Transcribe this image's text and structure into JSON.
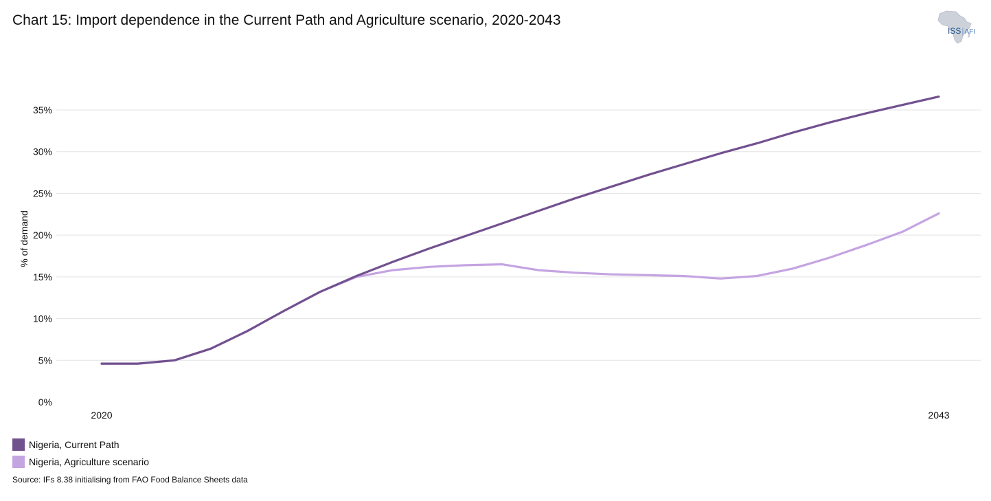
{
  "title": "Chart 15: Import dependence in the Current Path and Agriculture scenario, 2020-2043",
  "logo": {
    "primary": "ISS",
    "secondary": "AFI"
  },
  "source": "Source: IFs 8.38 initialising from FAO Food Balance Sheets data",
  "chart_data": {
    "type": "line",
    "title": "Chart 15: Import dependence in the Current Path and Agriculture scenario, 2020-2043",
    "xlabel": "",
    "ylabel": "% of demand",
    "x": [
      2020,
      2021,
      2022,
      2023,
      2024,
      2025,
      2026,
      2027,
      2028,
      2029,
      2030,
      2031,
      2032,
      2033,
      2034,
      2035,
      2036,
      2037,
      2038,
      2039,
      2040,
      2041,
      2042,
      2043
    ],
    "xticks": [
      2020,
      2043
    ],
    "xtick_labels": [
      "2020",
      "2043"
    ],
    "ylim": [
      0,
      35
    ],
    "yticks": [
      0,
      5,
      10,
      15,
      20,
      25,
      30,
      35
    ],
    "ytick_labels": [
      "0%",
      "5%",
      "10%",
      "15%",
      "20%",
      "25%",
      "30%",
      "35%"
    ],
    "grid": true,
    "legend_position": "bottom-left",
    "series": [
      {
        "name": "Nigeria, Current Path",
        "color": "#72518f",
        "values": [
          4.6,
          4.6,
          5.0,
          6.4,
          8.5,
          10.9,
          13.2,
          15.1,
          16.8,
          18.4,
          19.9,
          21.4,
          22.9,
          24.4,
          25.8,
          27.2,
          28.5,
          29.8,
          31.0,
          32.3,
          33.5,
          34.6,
          35.6,
          36.6
        ]
      },
      {
        "name": "Nigeria, Agriculture scenario",
        "color": "#c5a4e2",
        "values": [
          4.6,
          4.6,
          5.0,
          6.4,
          8.5,
          10.9,
          13.2,
          15.0,
          15.8,
          16.2,
          16.4,
          16.5,
          15.8,
          15.5,
          15.3,
          15.2,
          15.1,
          14.8,
          15.1,
          16.0,
          17.3,
          18.8,
          20.4,
          22.6
        ]
      }
    ]
  }
}
